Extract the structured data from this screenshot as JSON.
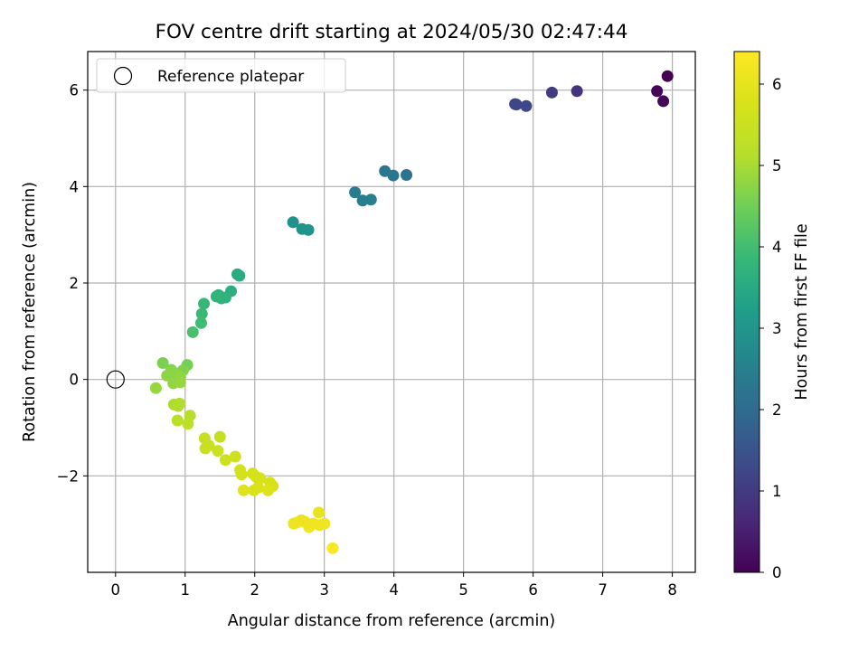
{
  "chart_data": {
    "type": "scatter",
    "title": "FOV centre drift starting at 2024/05/30 02:47:44",
    "xlabel": "Angular distance from reference (arcmin)",
    "ylabel": "Rotation from reference (arcmin)",
    "xlim": [
      -0.4,
      8.33
    ],
    "ylim": [
      -4.0,
      6.8
    ],
    "xticks": [
      0,
      1,
      2,
      3,
      4,
      5,
      6,
      7,
      8
    ],
    "yticks": [
      -2,
      0,
      2,
      4,
      6
    ],
    "ytick_labels": [
      "−2",
      "0",
      "2",
      "4",
      "6"
    ],
    "grid": true,
    "legend": {
      "position": "top-left",
      "label": "Reference platepar"
    },
    "colorbar": {
      "label": "Hours from first FF file",
      "range": [
        0,
        6.4
      ],
      "ticks": [
        0,
        1,
        2,
        3,
        4,
        5,
        6
      ],
      "colormap": "viridis"
    },
    "reference_point": {
      "x": 0,
      "y": 0
    },
    "points": [
      {
        "x": 7.93,
        "y": 6.29,
        "t": 0.0
      },
      {
        "x": 7.78,
        "y": 5.98,
        "t": 0.05
      },
      {
        "x": 7.87,
        "y": 5.77,
        "t": 0.1
      },
      {
        "x": 6.63,
        "y": 5.98,
        "t": 0.85
      },
      {
        "x": 6.27,
        "y": 5.95,
        "t": 1.0
      },
      {
        "x": 5.74,
        "y": 5.71,
        "t": 1.15
      },
      {
        "x": 5.76,
        "y": 5.7,
        "t": 1.2
      },
      {
        "x": 5.9,
        "y": 5.67,
        "t": 1.25
      },
      {
        "x": 4.18,
        "y": 4.24,
        "t": 2.2
      },
      {
        "x": 3.99,
        "y": 4.23,
        "t": 2.25
      },
      {
        "x": 3.87,
        "y": 4.32,
        "t": 2.3
      },
      {
        "x": 3.44,
        "y": 3.88,
        "t": 2.4
      },
      {
        "x": 3.55,
        "y": 3.71,
        "t": 2.45
      },
      {
        "x": 3.67,
        "y": 3.73,
        "t": 2.5
      },
      {
        "x": 2.55,
        "y": 3.26,
        "t": 2.9
      },
      {
        "x": 2.68,
        "y": 3.12,
        "t": 2.95
      },
      {
        "x": 2.77,
        "y": 3.1,
        "t": 3.0
      },
      {
        "x": 1.75,
        "y": 2.18,
        "t": 3.5
      },
      {
        "x": 1.78,
        "y": 2.15,
        "t": 3.55
      },
      {
        "x": 1.66,
        "y": 1.83,
        "t": 3.6
      },
      {
        "x": 1.48,
        "y": 1.75,
        "t": 3.65
      },
      {
        "x": 1.52,
        "y": 1.68,
        "t": 3.7
      },
      {
        "x": 1.58,
        "y": 1.7,
        "t": 3.72
      },
      {
        "x": 1.45,
        "y": 1.72,
        "t": 3.75
      },
      {
        "x": 1.27,
        "y": 1.57,
        "t": 3.85
      },
      {
        "x": 1.24,
        "y": 1.36,
        "t": 3.9
      },
      {
        "x": 1.23,
        "y": 1.17,
        "t": 3.95
      },
      {
        "x": 1.11,
        "y": 0.98,
        "t": 4.05
      },
      {
        "x": 1.03,
        "y": 0.3,
        "t": 4.5
      },
      {
        "x": 0.68,
        "y": 0.34,
        "t": 4.6
      },
      {
        "x": 0.97,
        "y": 0.19,
        "t": 4.65
      },
      {
        "x": 0.8,
        "y": 0.2,
        "t": 4.7
      },
      {
        "x": 0.87,
        "y": 0.12,
        "t": 4.72
      },
      {
        "x": 0.74,
        "y": 0.08,
        "t": 4.75
      },
      {
        "x": 0.93,
        "y": 0.05,
        "t": 4.78
      },
      {
        "x": 0.83,
        "y": -0.08,
        "t": 4.8
      },
      {
        "x": 0.93,
        "y": -0.06,
        "t": 4.82
      },
      {
        "x": 0.58,
        "y": -0.18,
        "t": 4.85
      },
      {
        "x": 0.84,
        "y": -0.52,
        "t": 5.05
      },
      {
        "x": 0.92,
        "y": -0.5,
        "t": 5.08
      },
      {
        "x": 0.9,
        "y": -0.55,
        "t": 5.1
      },
      {
        "x": 1.07,
        "y": -0.75,
        "t": 5.15
      },
      {
        "x": 0.89,
        "y": -0.85,
        "t": 5.2
      },
      {
        "x": 1.04,
        "y": -0.92,
        "t": 5.25
      },
      {
        "x": 1.5,
        "y": -1.19,
        "t": 5.4
      },
      {
        "x": 1.28,
        "y": -1.22,
        "t": 5.42
      },
      {
        "x": 1.34,
        "y": -1.37,
        "t": 5.45
      },
      {
        "x": 1.29,
        "y": -1.43,
        "t": 5.48
      },
      {
        "x": 1.47,
        "y": -1.48,
        "t": 5.5
      },
      {
        "x": 1.72,
        "y": -1.6,
        "t": 5.55
      },
      {
        "x": 1.58,
        "y": -1.67,
        "t": 5.58
      },
      {
        "x": 1.79,
        "y": -1.88,
        "t": 5.65
      },
      {
        "x": 1.81,
        "y": -1.97,
        "t": 5.68
      },
      {
        "x": 1.97,
        "y": -1.95,
        "t": 5.7
      },
      {
        "x": 2.02,
        "y": -2.02,
        "t": 5.72
      },
      {
        "x": 2.08,
        "y": -2.05,
        "t": 5.74
      },
      {
        "x": 2.22,
        "y": -2.14,
        "t": 5.76
      },
      {
        "x": 2.26,
        "y": -2.21,
        "t": 5.78
      },
      {
        "x": 2.05,
        "y": -2.24,
        "t": 5.8
      },
      {
        "x": 1.99,
        "y": -2.3,
        "t": 5.82
      },
      {
        "x": 2.19,
        "y": -2.3,
        "t": 5.84
      },
      {
        "x": 1.84,
        "y": -2.3,
        "t": 5.86
      },
      {
        "x": 2.92,
        "y": -2.76,
        "t": 6.0
      },
      {
        "x": 2.67,
        "y": -2.92,
        "t": 6.05
      },
      {
        "x": 2.72,
        "y": -2.95,
        "t": 6.08
      },
      {
        "x": 2.56,
        "y": -2.99,
        "t": 6.1
      },
      {
        "x": 2.6,
        "y": -2.97,
        "t": 6.12
      },
      {
        "x": 2.84,
        "y": -2.99,
        "t": 6.14
      },
      {
        "x": 3.0,
        "y": -2.99,
        "t": 6.16
      },
      {
        "x": 2.93,
        "y": -3.02,
        "t": 6.18
      },
      {
        "x": 2.78,
        "y": -3.06,
        "t": 6.2
      },
      {
        "x": 3.12,
        "y": -3.5,
        "t": 6.35
      }
    ]
  }
}
